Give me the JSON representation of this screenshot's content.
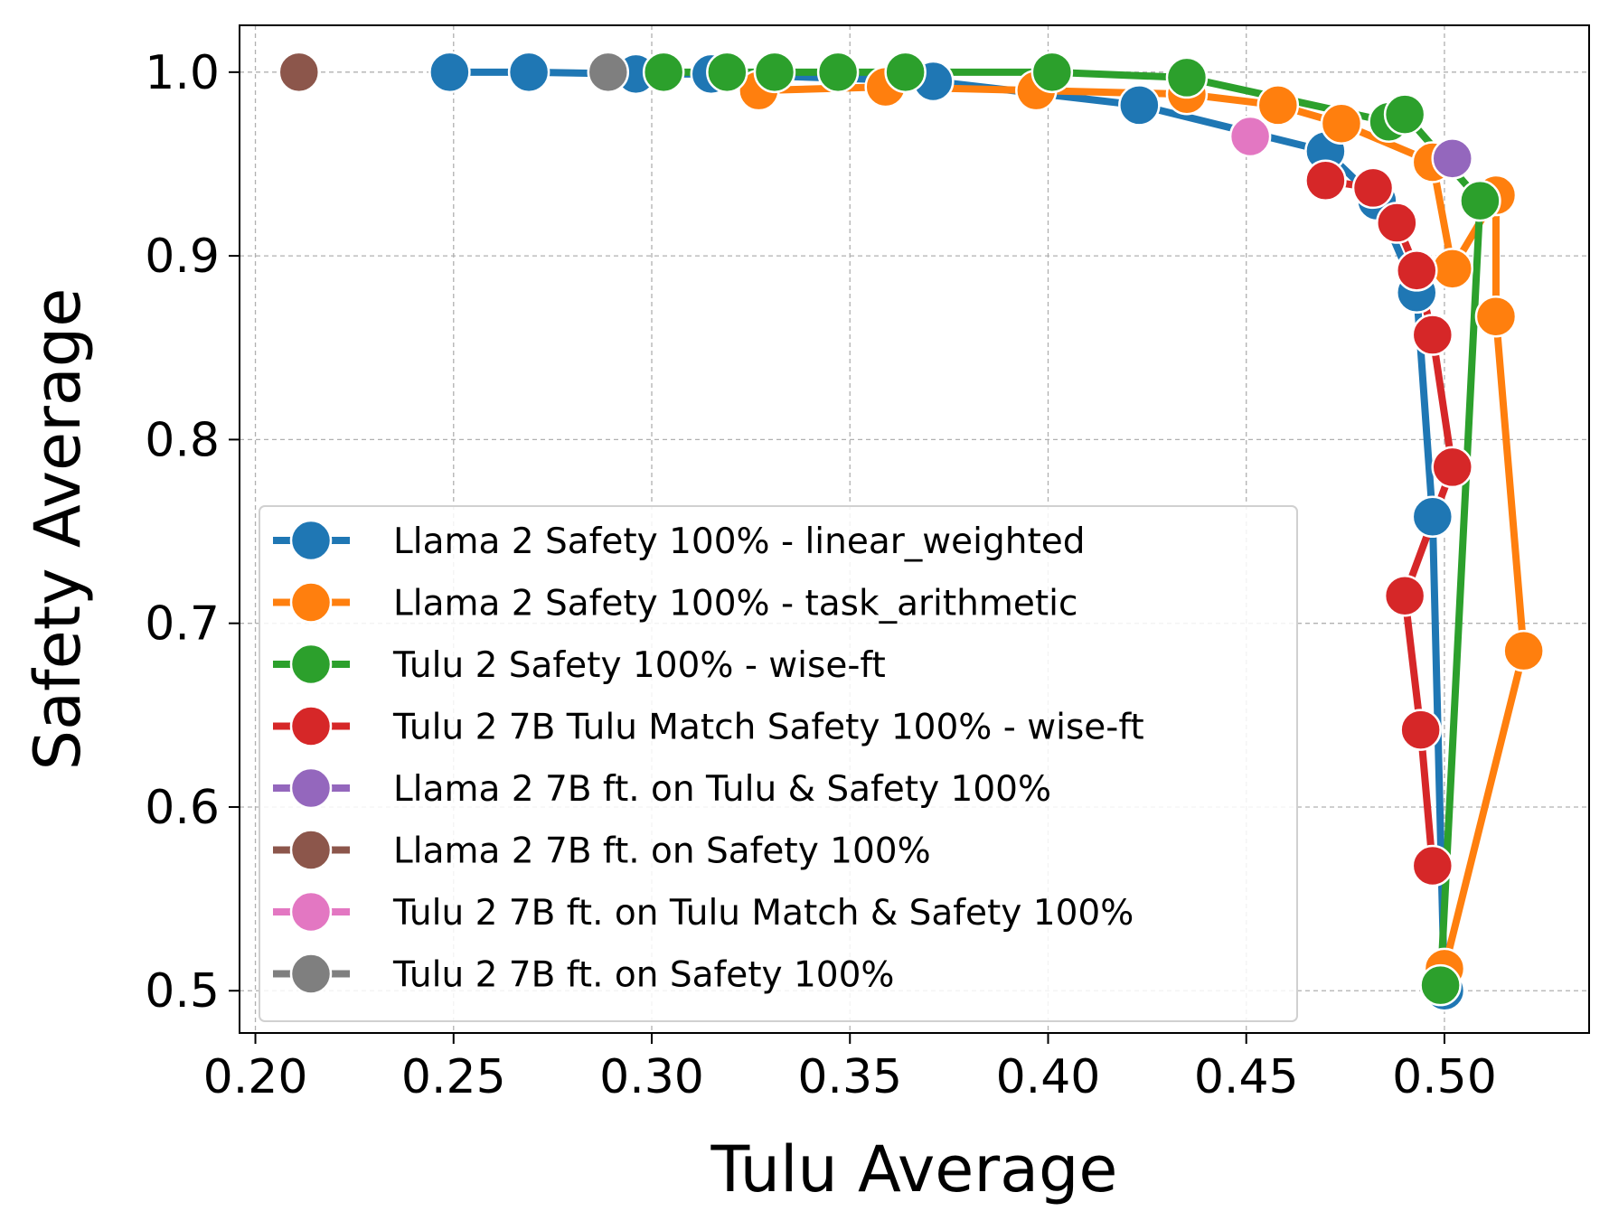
{
  "chart_data": {
    "type": "line",
    "xlabel": "Tulu Average",
    "ylabel": "Safety Average",
    "xlim": [
      0.196,
      0.5365
    ],
    "ylim": [
      0.477,
      1.0255
    ],
    "xticks": [
      0.2,
      0.25,
      0.3,
      0.35,
      0.4,
      0.45,
      0.5
    ],
    "xtick_labels": [
      "0.20",
      "0.25",
      "0.30",
      "0.35",
      "0.40",
      "0.45",
      "0.50"
    ],
    "yticks": [
      0.5,
      0.6,
      0.7,
      0.8,
      0.9,
      1.0
    ],
    "ytick_labels": [
      "0.5",
      "0.6",
      "0.7",
      "0.8",
      "0.9",
      "1.0"
    ],
    "grid": true,
    "legend_position": "lower-left",
    "series": [
      {
        "name": "Llama 2 Safety 100% - linear_weighted",
        "color": "#1f77b4",
        "marker": "circle",
        "line": true,
        "points": [
          [
            0.249,
            1.0
          ],
          [
            0.269,
            1.0
          ],
          [
            0.296,
            0.999
          ],
          [
            0.315,
            0.999
          ],
          [
            0.371,
            0.995
          ],
          [
            0.423,
            0.982
          ],
          [
            0.47,
            0.957
          ],
          [
            0.483,
            0.93
          ],
          [
            0.493,
            0.88
          ],
          [
            0.497,
            0.758
          ],
          [
            0.5,
            0.5
          ]
        ]
      },
      {
        "name": "Llama 2 Safety 100% - task_arithmetic",
        "color": "#ff7f0e",
        "marker": "circle",
        "line": true,
        "points": [
          [
            0.327,
            0.99
          ],
          [
            0.359,
            0.992
          ],
          [
            0.397,
            0.99
          ],
          [
            0.435,
            0.988
          ],
          [
            0.458,
            0.982
          ],
          [
            0.474,
            0.972
          ],
          [
            0.497,
            0.951
          ],
          [
            0.502,
            0.893
          ],
          [
            0.513,
            0.933
          ],
          [
            0.513,
            0.867
          ],
          [
            0.52,
            0.685
          ],
          [
            0.5,
            0.512
          ]
        ]
      },
      {
        "name": "Tulu 2 Safety 100% - wise-ft",
        "color": "#2ca02c",
        "marker": "circle",
        "line": true,
        "points": [
          [
            0.303,
            1.0
          ],
          [
            0.319,
            1.0
          ],
          [
            0.331,
            1.0
          ],
          [
            0.347,
            1.0
          ],
          [
            0.364,
            1.0
          ],
          [
            0.401,
            1.0
          ],
          [
            0.435,
            0.997
          ],
          [
            0.486,
            0.973
          ],
          [
            0.49,
            0.977
          ],
          [
            0.509,
            0.93
          ],
          [
            0.499,
            0.503
          ]
        ]
      },
      {
        "name": "Tulu 2 7B Tulu Match Safety 100% - wise-ft",
        "color": "#d62728",
        "marker": "circle",
        "line": true,
        "points": [
          [
            0.47,
            0.941
          ],
          [
            0.482,
            0.937
          ],
          [
            0.488,
            0.918
          ],
          [
            0.493,
            0.892
          ],
          [
            0.497,
            0.857
          ],
          [
            0.502,
            0.785
          ],
          [
            0.49,
            0.715
          ],
          [
            0.494,
            0.642
          ],
          [
            0.497,
            0.568
          ]
        ]
      },
      {
        "name": "Llama 2 7B ft. on Tulu & Safety 100%",
        "color": "#9467bd",
        "marker": "circle",
        "line": false,
        "points": [
          [
            0.502,
            0.953
          ]
        ]
      },
      {
        "name": "Llama 2 7B ft. on Safety 100%",
        "color": "#8c564b",
        "marker": "circle",
        "line": false,
        "points": [
          [
            0.211,
            1.0
          ]
        ]
      },
      {
        "name": "Tulu 2 7B ft. on Tulu Match & Safety 100%",
        "color": "#e377c2",
        "marker": "circle",
        "line": false,
        "points": [
          [
            0.451,
            0.965
          ]
        ]
      },
      {
        "name": "Tulu 2 7B ft. on Safety 100%",
        "color": "#7f7f7f",
        "marker": "circle",
        "line": false,
        "points": [
          [
            0.289,
            1.0
          ]
        ]
      }
    ]
  }
}
